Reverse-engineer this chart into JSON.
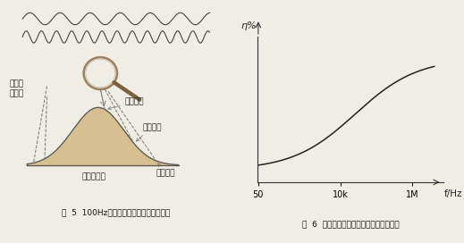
{
  "fig_width": 5.19,
  "fig_height": 2.72,
  "dpi": 100,
  "bg_color": "#f0ede5",
  "left_panel": {
    "waves_color": "#444444",
    "magnifier_ring_color": "#9a8060",
    "magnifier_handle_color": "#7a6040",
    "bell_fill": "#d4bc88",
    "bell_fill_alpha": 0.9,
    "bell_edge": "#555555",
    "dline_color": "#777777",
    "label_fs": 6.5,
    "label_color": "#222222",
    "labels": {
      "feihe": "非饱和\n荧光粉",
      "baiguang": "白光输出",
      "huangguang": "黄光输出",
      "hongguang": "红光输出",
      "dongtai": "动态光输出"
    },
    "caption": "图  5  100Hz闪频的荧光灯发光变化示意图"
  },
  "right_panel": {
    "ylabel": "η%",
    "xlabel": "f/Hz",
    "xtick_labels": [
      "50",
      "10k",
      "1M"
    ],
    "line_color": "#222222",
    "caption": "图  6  荧光灯发光效率与工作频率关系曲线"
  }
}
